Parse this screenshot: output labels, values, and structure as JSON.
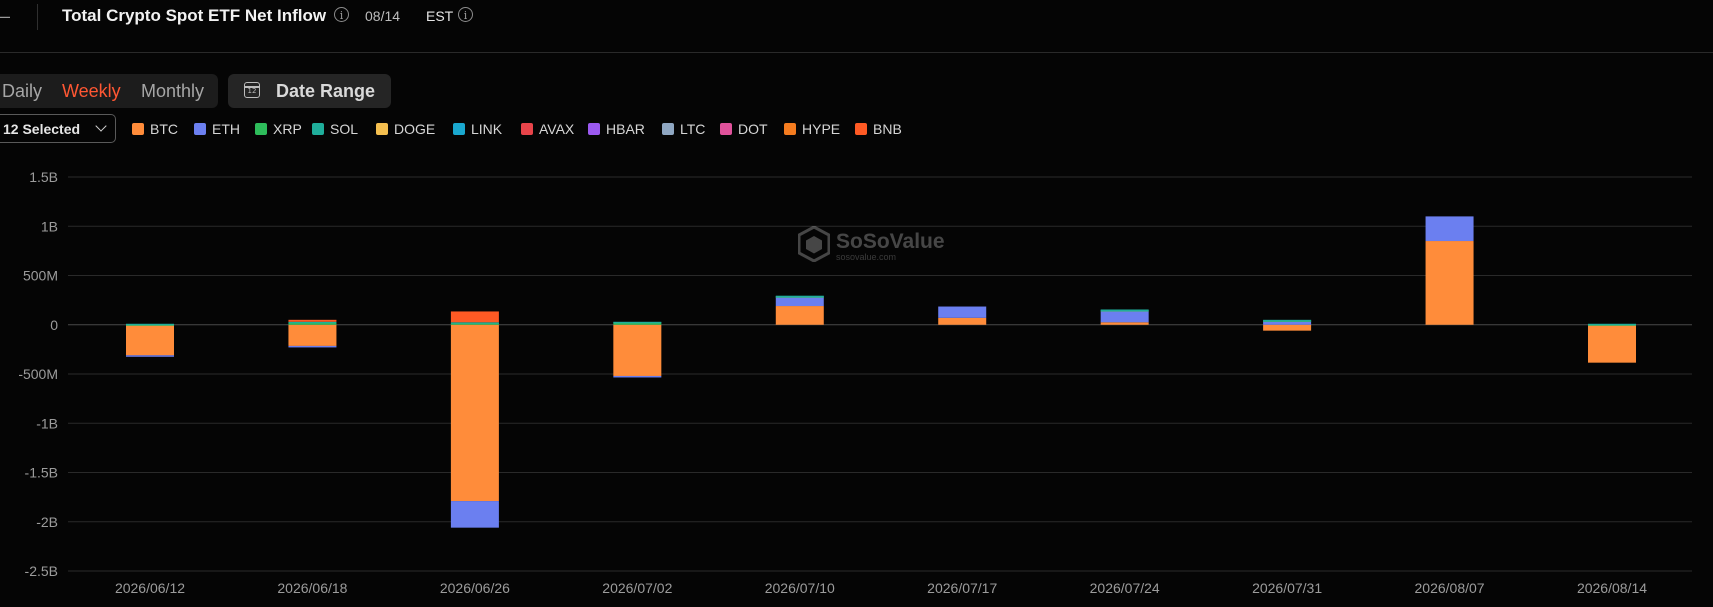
{
  "header": {
    "title": "Total Crypto Spot ETF Net Inflow",
    "date": "08/14",
    "timezone": "EST"
  },
  "period_tabs": [
    {
      "label": "Daily",
      "active": false
    },
    {
      "label": "Weekly",
      "active": true
    },
    {
      "label": "Monthly",
      "active": false
    }
  ],
  "date_range": {
    "label": "Date Range",
    "icon_text": "12"
  },
  "selector": {
    "label": "12 Selected"
  },
  "watermark": {
    "name": "SoSoValue",
    "url": "sosovalue.com"
  },
  "colors": {
    "BTC": "#ff8c3a",
    "ETH": "#6b7ff0",
    "XRP": "#2ebd5b",
    "SOL": "#1fae9b",
    "DOGE": "#f5bf4f",
    "LINK": "#1aa8cf",
    "AVAX": "#e8444a",
    "HBAR": "#9b59f0",
    "LTC": "#8fa7c2",
    "DOT": "#e0529b",
    "HYPE": "#f57c1f",
    "BNB": "#ff5a24",
    "accent": "#ff5733",
    "background": "#050505",
    "grid": "#2a2a2a"
  },
  "chart_data": {
    "type": "bar",
    "stacked": true,
    "title": "Total Crypto Spot ETF Net Inflow",
    "categories": [
      "2026/06/12",
      "2026/06/18",
      "2026/06/26",
      "2026/07/02",
      "2026/07/10",
      "2026/07/17",
      "2026/07/24",
      "2026/07/31",
      "2026/08/07",
      "2026/08/14"
    ],
    "y_ticks": [
      "1.5B",
      "1B",
      "500M",
      "0",
      "-500M",
      "-1B",
      "-1.5B",
      "-2B",
      "-2.5B"
    ],
    "ylim": [
      -2500000000,
      1500000000
    ],
    "grid": true,
    "legend_position": "top-left",
    "series": [
      {
        "name": "BTC",
        "values": [
          -310000000,
          -215000000,
          -1790000000,
          -520000000,
          190000000,
          70000000,
          25000000,
          -60000000,
          850000000,
          -385000000
        ]
      },
      {
        "name": "ETH",
        "values": [
          -15000000,
          -10000000,
          -270000000,
          -15000000,
          95000000,
          115000000,
          115000000,
          40000000,
          250000000,
          0
        ]
      },
      {
        "name": "XRP",
        "values": [
          5000000,
          20000000,
          20000000,
          25000000,
          5000000,
          0,
          10000000,
          5000000,
          0,
          5000000
        ]
      },
      {
        "name": "SOL",
        "values": [
          5000000,
          10000000,
          5000000,
          5000000,
          5000000,
          0,
          5000000,
          5000000,
          0,
          5000000
        ]
      },
      {
        "name": "DOGE",
        "values": [
          0,
          0,
          0,
          0,
          0,
          0,
          0,
          0,
          0,
          0
        ]
      },
      {
        "name": "LINK",
        "values": [
          0,
          0,
          0,
          0,
          0,
          0,
          0,
          0,
          0,
          0
        ]
      },
      {
        "name": "AVAX",
        "values": [
          0,
          0,
          0,
          0,
          0,
          0,
          0,
          0,
          0,
          0
        ]
      },
      {
        "name": "HBAR",
        "values": [
          0,
          0,
          0,
          0,
          0,
          0,
          0,
          0,
          0,
          0
        ]
      },
      {
        "name": "LTC",
        "values": [
          0,
          0,
          0,
          0,
          0,
          0,
          0,
          0,
          0,
          0
        ]
      },
      {
        "name": "DOT",
        "values": [
          0,
          0,
          0,
          0,
          0,
          0,
          0,
          0,
          0,
          0
        ]
      },
      {
        "name": "HYPE",
        "values": [
          0,
          0,
          0,
          0,
          0,
          0,
          0,
          0,
          0,
          0
        ]
      },
      {
        "name": "BNB",
        "values": [
          0,
          20000000,
          110000000,
          0,
          0,
          0,
          0,
          0,
          0,
          0
        ]
      }
    ]
  }
}
